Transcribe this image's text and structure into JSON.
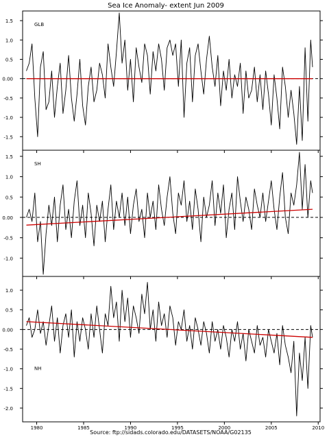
{
  "title": "Sea Ice Anomaly- extent Jun 2009",
  "source": "Source:  ftp://sidads.colorado.edu/DATASETS/NOAA/G02135",
  "chart_data": [
    {
      "type": "line",
      "panel_label": "GLB",
      "xlim": [
        1978.5,
        2010.2
      ],
      "ylim": [
        -1.85,
        1.75
      ],
      "x_ticks": [
        1980,
        1985,
        1990,
        1995,
        2000,
        2005,
        2010
      ],
      "y_ticks": [
        1.5,
        1.0,
        0.5,
        0.0,
        -0.5,
        -1.0,
        -1.5
      ],
      "y_tick_labels": [
        "1.5",
        "1.0",
        "0.5",
        "0.00",
        "-0.5",
        "-1.0",
        "-1.5"
      ],
      "zero_line": "dashed",
      "series": [
        {
          "role": "anomaly",
          "color": "#000000",
          "x": [
            1978.9,
            1979.2,
            1979.5,
            1979.8,
            1980.1,
            1980.4,
            1980.7,
            1981.0,
            1981.3,
            1981.6,
            1981.9,
            1982.2,
            1982.5,
            1982.8,
            1983.1,
            1983.4,
            1983.7,
            1984.0,
            1984.3,
            1984.6,
            1984.9,
            1985.2,
            1985.5,
            1985.8,
            1986.1,
            1986.4,
            1986.7,
            1987.0,
            1987.3,
            1987.6,
            1987.9,
            1988.2,
            1988.5,
            1988.8,
            1989.1,
            1989.4,
            1989.7,
            1990.0,
            1990.3,
            1990.6,
            1990.9,
            1991.2,
            1991.5,
            1991.8,
            1992.1,
            1992.4,
            1992.7,
            1993.0,
            1993.3,
            1993.6,
            1993.9,
            1994.2,
            1994.5,
            1994.8,
            1995.1,
            1995.4,
            1995.7,
            1996.0,
            1996.3,
            1996.6,
            1996.9,
            1997.2,
            1997.5,
            1997.8,
            1998.1,
            1998.4,
            1998.7,
            1999.0,
            1999.3,
            1999.6,
            1999.9,
            2000.2,
            2000.5,
            2000.8,
            2001.1,
            2001.4,
            2001.7,
            2002.0,
            2002.3,
            2002.6,
            2002.9,
            2003.2,
            2003.5,
            2003.8,
            2004.1,
            2004.4,
            2004.7,
            2005.0,
            2005.3,
            2005.6,
            2005.9,
            2006.2,
            2006.5,
            2006.8,
            2007.1,
            2007.4,
            2007.7,
            2008.0,
            2008.3,
            2008.6,
            2008.9,
            2009.2,
            2009.4
          ],
          "y": [
            0.2,
            0.4,
            0.9,
            -0.5,
            -1.5,
            0.3,
            0.7,
            -0.8,
            -0.6,
            0.2,
            -1.0,
            -0.2,
            0.4,
            -0.9,
            -0.3,
            0.6,
            -0.5,
            -1.1,
            -0.4,
            0.5,
            -0.7,
            -1.2,
            -0.2,
            0.3,
            -0.6,
            -0.3,
            0.4,
            0.1,
            -0.5,
            0.9,
            0.3,
            -0.2,
            0.7,
            1.7,
            0.4,
            1.0,
            -0.3,
            0.5,
            -0.6,
            0.8,
            0.3,
            -0.1,
            0.9,
            0.6,
            -0.4,
            0.7,
            0.2,
            0.9,
            0.5,
            -0.3,
            0.8,
            1.0,
            0.6,
            0.9,
            -0.2,
            1.0,
            -1.0,
            0.4,
            0.8,
            -0.6,
            0.6,
            0.9,
            0.2,
            -0.4,
            0.5,
            1.1,
            0.3,
            -0.2,
            0.6,
            -0.7,
            0.2,
            -0.3,
            0.5,
            -0.5,
            0.1,
            -0.2,
            0.4,
            -0.9,
            0.2,
            -0.5,
            -0.3,
            0.3,
            -0.6,
            0.1,
            -0.8,
            0.2,
            -0.4,
            -1.2,
            0.1,
            -0.5,
            -1.3,
            0.3,
            -0.2,
            -1.0,
            -0.3,
            -0.9,
            -1.7,
            -0.2,
            -1.6,
            0.8,
            -1.1,
            1.0,
            0.3
          ]
        },
        {
          "role": "trend",
          "color": "#cc0000",
          "x": [
            1978.9,
            2009.4
          ],
          "y": [
            0.0,
            0.0
          ]
        }
      ]
    },
    {
      "type": "line",
      "panel_label": "SH",
      "xlim": [
        1978.5,
        2010.2
      ],
      "ylim": [
        -1.45,
        1.65
      ],
      "x_ticks": [
        1980,
        1985,
        1990,
        1995,
        2000,
        2005,
        2010
      ],
      "y_ticks": [
        1.5,
        1.0,
        0.5,
        0.0,
        -0.5,
        -1.0
      ],
      "y_tick_labels": [
        "1.5",
        "1.0",
        "0.5",
        "0.00",
        "-0.5",
        "-1.0"
      ],
      "zero_line": "dashed",
      "series": [
        {
          "role": "anomaly",
          "color": "#000000",
          "x": [
            1978.9,
            1979.2,
            1979.5,
            1979.8,
            1980.1,
            1980.4,
            1980.7,
            1981.0,
            1981.3,
            1981.6,
            1981.9,
            1982.2,
            1982.5,
            1982.8,
            1983.1,
            1983.4,
            1983.7,
            1984.0,
            1984.3,
            1984.6,
            1984.9,
            1985.2,
            1985.5,
            1985.8,
            1986.1,
            1986.4,
            1986.7,
            1987.0,
            1987.3,
            1987.6,
            1987.9,
            1988.2,
            1988.5,
            1988.8,
            1989.1,
            1989.4,
            1989.7,
            1990.0,
            1990.3,
            1990.6,
            1990.9,
            1991.2,
            1991.5,
            1991.8,
            1992.1,
            1992.4,
            1992.7,
            1993.0,
            1993.3,
            1993.6,
            1993.9,
            1994.2,
            1994.5,
            1994.8,
            1995.1,
            1995.4,
            1995.7,
            1996.0,
            1996.3,
            1996.6,
            1996.9,
            1997.2,
            1997.5,
            1997.8,
            1998.1,
            1998.4,
            1998.7,
            1999.0,
            1999.3,
            1999.6,
            1999.9,
            2000.2,
            2000.5,
            2000.8,
            2001.1,
            2001.4,
            2001.7,
            2002.0,
            2002.3,
            2002.6,
            2002.9,
            2003.2,
            2003.5,
            2003.8,
            2004.1,
            2004.4,
            2004.7,
            2005.0,
            2005.3,
            2005.6,
            2005.9,
            2006.2,
            2006.5,
            2006.8,
            2007.1,
            2007.4,
            2007.7,
            2008.0,
            2008.3,
            2008.6,
            2008.9,
            2009.2,
            2009.4
          ],
          "y": [
            0.0,
            0.2,
            -0.1,
            0.6,
            -0.6,
            -0.1,
            -1.4,
            -0.4,
            0.3,
            -0.2,
            0.5,
            -0.6,
            0.3,
            0.8,
            -0.3,
            0.2,
            -0.5,
            0.4,
            0.9,
            -0.2,
            0.3,
            -0.5,
            0.6,
            0.1,
            -0.7,
            0.3,
            -0.1,
            0.4,
            -0.6,
            0.2,
            0.8,
            -0.3,
            0.4,
            0.0,
            0.6,
            -0.2,
            0.5,
            -0.4,
            0.3,
            0.7,
            -0.1,
            0.2,
            -0.5,
            0.6,
            0.0,
            0.4,
            -0.3,
            0.8,
            0.2,
            -0.2,
            0.5,
            1.0,
            0.1,
            -0.4,
            0.6,
            0.3,
            0.9,
            -0.1,
            0.4,
            -0.3,
            0.7,
            0.2,
            -0.6,
            0.5,
            0.0,
            0.3,
            0.9,
            -0.2,
            0.6,
            0.1,
            0.8,
            -0.5,
            0.2,
            0.6,
            -0.3,
            1.0,
            0.4,
            -0.1,
            0.5,
            0.2,
            -0.3,
            0.7,
            0.3,
            0.0,
            0.6,
            -0.1,
            0.4,
            0.9,
            0.2,
            -0.3,
            0.5,
            1.1,
            0.0,
            -0.4,
            0.6,
            0.3,
            0.8,
            1.6,
            0.2,
            1.3,
            0.0,
            0.9,
            0.6
          ]
        },
        {
          "role": "trend",
          "color": "#cc0000",
          "x": [
            1978.9,
            2009.4
          ],
          "y": [
            -0.19,
            0.2
          ]
        }
      ]
    },
    {
      "type": "line",
      "panel_label": "NH",
      "xlim": [
        1978.5,
        2010.2
      ],
      "ylim": [
        -2.35,
        1.35
      ],
      "x_ticks": [
        1980,
        1985,
        1990,
        1995,
        2000,
        2005,
        2010
      ],
      "x_tick_labels": [
        "1980",
        "1985",
        "1990",
        "1995",
        "2000",
        "2005",
        "2010"
      ],
      "y_ticks": [
        1.0,
        0.5,
        0.0,
        -0.5,
        -1.0,
        -1.5,
        -2.0
      ],
      "y_tick_labels": [
        "1.0",
        "0.5",
        "0.00",
        "-0.5",
        "-1.0",
        "-1.5",
        "-2.0"
      ],
      "zero_line": "dashed",
      "series": [
        {
          "role": "anomaly",
          "color": "#000000",
          "x": [
            1978.9,
            1979.2,
            1979.5,
            1979.8,
            1980.1,
            1980.4,
            1980.7,
            1981.0,
            1981.3,
            1981.6,
            1981.9,
            1982.2,
            1982.5,
            1982.8,
            1983.1,
            1983.4,
            1983.7,
            1984.0,
            1984.3,
            1984.6,
            1984.9,
            1985.2,
            1985.5,
            1985.8,
            1986.1,
            1986.4,
            1986.7,
            1987.0,
            1987.3,
            1987.6,
            1987.9,
            1988.2,
            1988.5,
            1988.8,
            1989.1,
            1989.4,
            1989.7,
            1990.0,
            1990.3,
            1990.6,
            1990.9,
            1991.2,
            1991.5,
            1991.8,
            1992.1,
            1992.4,
            1992.7,
            1993.0,
            1993.3,
            1993.6,
            1993.9,
            1994.2,
            1994.5,
            1994.8,
            1995.1,
            1995.4,
            1995.7,
            1996.0,
            1996.3,
            1996.6,
            1996.9,
            1997.2,
            1997.5,
            1997.8,
            1998.1,
            1998.4,
            1998.7,
            1999.0,
            1999.3,
            1999.6,
            1999.9,
            2000.2,
            2000.5,
            2000.8,
            2001.1,
            2001.4,
            2001.7,
            2002.0,
            2002.3,
            2002.6,
            2002.9,
            2003.2,
            2003.5,
            2003.8,
            2004.1,
            2004.4,
            2004.7,
            2005.0,
            2005.3,
            2005.6,
            2005.9,
            2006.2,
            2006.5,
            2006.8,
            2007.1,
            2007.4,
            2007.7,
            2008.0,
            2008.3,
            2008.6,
            2008.9,
            2009.2,
            2009.4
          ],
          "y": [
            0.1,
            0.3,
            -0.2,
            0.0,
            0.5,
            -0.1,
            0.2,
            -0.4,
            0.1,
            0.6,
            -0.3,
            0.3,
            -0.6,
            0.1,
            0.4,
            -0.2,
            0.5,
            -0.7,
            0.2,
            -0.3,
            0.3,
            0.0,
            -0.5,
            0.4,
            -0.2,
            0.6,
            0.0,
            -0.6,
            0.4,
            0.1,
            1.1,
            0.3,
            0.7,
            -0.3,
            1.0,
            0.2,
            0.8,
            -0.2,
            0.6,
            0.3,
            -0.1,
            0.9,
            0.4,
            1.2,
            0.0,
            0.5,
            -0.3,
            0.7,
            0.1,
            0.4,
            -0.2,
            0.6,
            0.3,
            -0.4,
            0.2,
            0.0,
            0.5,
            -0.3,
            0.1,
            -0.5,
            0.3,
            0.0,
            -0.4,
            0.2,
            -0.1,
            -0.6,
            0.2,
            -0.3,
            0.0,
            -0.5,
            0.1,
            -0.2,
            -0.7,
            0.0,
            -0.3,
            0.2,
            -0.5,
            -0.1,
            -0.8,
            0.0,
            -0.3,
            -0.6,
            0.1,
            -0.4,
            -0.2,
            -0.7,
            0.0,
            -0.3,
            -0.6,
            -0.1,
            -0.9,
            0.1,
            -0.4,
            -0.7,
            -1.1,
            -0.3,
            -2.2,
            -0.6,
            -1.3,
            -0.2,
            -1.5,
            0.1,
            -0.2
          ]
        },
        {
          "role": "trend",
          "color": "#cc0000",
          "x": [
            1978.9,
            2009.4
          ],
          "y": [
            0.2,
            -0.2
          ]
        }
      ]
    }
  ]
}
